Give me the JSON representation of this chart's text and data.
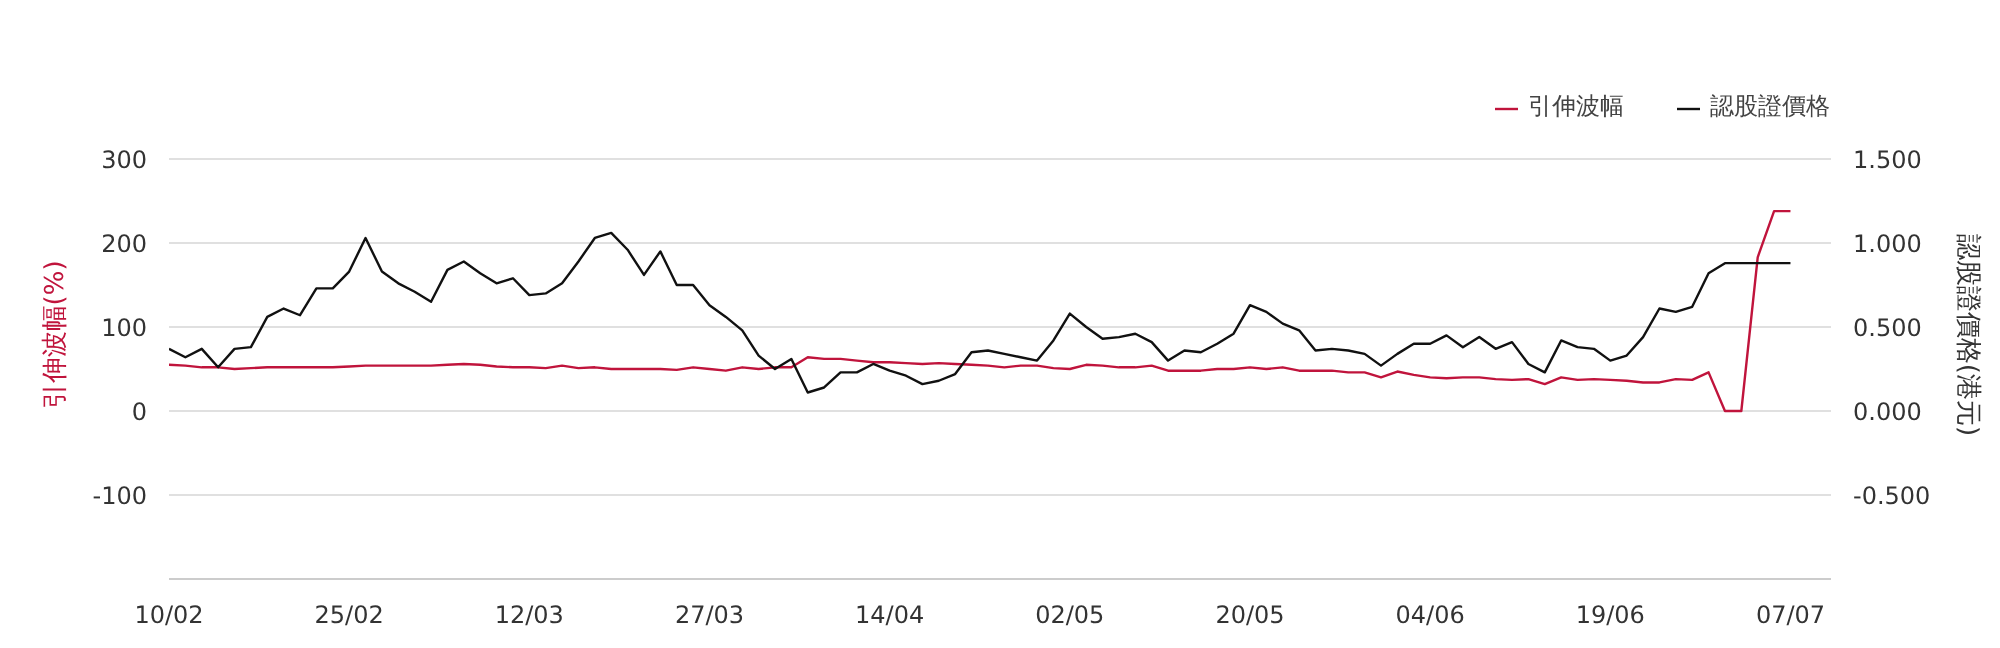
{
  "chart_data": {
    "type": "line",
    "categories": [
      "10/02",
      null,
      null,
      null,
      null,
      null,
      null,
      null,
      null,
      null,
      null,
      "25/02",
      null,
      null,
      null,
      null,
      null,
      null,
      null,
      null,
      null,
      null,
      "12/03",
      null,
      null,
      null,
      null,
      null,
      null,
      null,
      null,
      null,
      null,
      "27/03",
      null,
      null,
      null,
      null,
      null,
      null,
      null,
      null,
      null,
      null,
      "14/04",
      null,
      null,
      null,
      null,
      null,
      null,
      null,
      null,
      null,
      null,
      "02/05",
      null,
      null,
      null,
      null,
      null,
      null,
      null,
      null,
      null,
      null,
      "20/05",
      null,
      null,
      null,
      null,
      null,
      null,
      null,
      null,
      null,
      null,
      "04/06",
      null,
      null,
      null,
      null,
      null,
      null,
      null,
      null,
      null,
      null,
      "19/06",
      null,
      null,
      null,
      null,
      null,
      null,
      null,
      null,
      null,
      null,
      "07/07"
    ],
    "series": [
      {
        "name": "引伸波幅",
        "color": "#c0143c",
        "values": [
          55,
          54,
          52,
          52,
          50,
          51,
          52,
          52,
          52,
          52,
          52,
          53,
          54,
          54,
          54,
          54,
          54,
          55,
          56,
          55,
          53,
          52,
          52,
          51,
          54,
          51,
          52,
          50,
          50,
          50,
          50,
          49,
          52,
          50,
          48,
          52,
          50,
          52,
          52,
          64,
          62,
          62,
          60,
          58,
          58,
          57,
          56,
          57,
          56,
          55,
          54,
          52,
          54,
          54,
          51,
          50,
          55,
          54,
          52,
          52,
          54,
          48,
          48,
          48,
          50,
          50,
          52,
          50,
          52,
          48,
          48,
          48,
          46,
          46,
          40,
          47,
          43,
          40,
          39,
          40,
          40,
          38,
          37,
          38,
          32,
          40,
          37,
          38,
          37,
          36,
          34,
          34,
          38,
          37,
          46,
          0,
          0,
          183,
          238,
          238
        ]
      },
      {
        "name": "認股證價格",
        "color": "#111111",
        "axis": "y2",
        "values": [
          0.37,
          0.32,
          0.37,
          0.26,
          0.37,
          0.38,
          0.56,
          0.61,
          0.57,
          0.73,
          0.73,
          0.83,
          1.03,
          0.83,
          0.76,
          0.71,
          0.65,
          0.84,
          0.89,
          0.82,
          0.76,
          0.79,
          0.69,
          0.7,
          0.76,
          0.89,
          1.03,
          1.06,
          0.96,
          0.81,
          0.95,
          0.75,
          0.75,
          0.63,
          0.56,
          0.48,
          0.33,
          0.25,
          0.31,
          0.11,
          0.14,
          0.23,
          0.23,
          0.28,
          0.24,
          0.21,
          0.16,
          0.18,
          0.22,
          0.35,
          0.36,
          0.34,
          0.32,
          0.3,
          0.42,
          0.58,
          0.5,
          0.43,
          0.44,
          0.46,
          0.41,
          0.3,
          0.36,
          0.35,
          0.4,
          0.46,
          0.63,
          0.59,
          0.52,
          0.48,
          0.36,
          0.37,
          0.36,
          0.34,
          0.27,
          0.34,
          0.4,
          0.4,
          0.45,
          0.38,
          0.44,
          0.37,
          0.41,
          0.28,
          0.23,
          0.42,
          0.38,
          0.37,
          0.3,
          0.33,
          0.44,
          0.61,
          0.59,
          0.62,
          0.82,
          0.88,
          0.88,
          0.88,
          0.88,
          0.88
        ]
      }
    ],
    "ylabel": "引伸波幅(%)",
    "y2label": "認股證價格(港元)",
    "ylim": [
      -200,
      300
    ],
    "yticks": [
      -100,
      0,
      100,
      200,
      300
    ],
    "y2lim": [
      -1.0,
      1.5
    ],
    "y2ticks": [
      {
        "value": -0.5,
        "label": "-0.500"
      },
      {
        "value": 0,
        "label": "0.000"
      },
      {
        "value": 0.5,
        "label": "0.500"
      },
      {
        "value": 1.0,
        "label": "1.000"
      },
      {
        "value": 1.5,
        "label": "1.500"
      }
    ],
    "grid": "y",
    "legend": "top right",
    "marker": "none",
    "line_style": "solid"
  }
}
